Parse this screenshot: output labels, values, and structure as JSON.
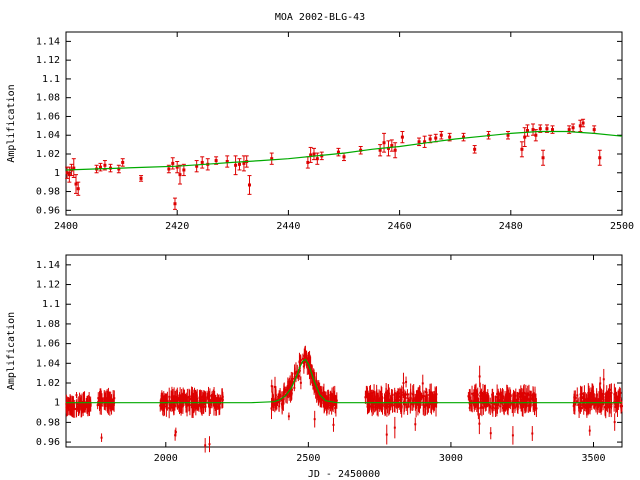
{
  "title": "MOA 2002-BLG-43",
  "colors": {
    "data": "#dd0000",
    "model": "#00aa00",
    "axis": "#000000"
  },
  "chart_data": [
    {
      "type": "scatter",
      "ylabel": "Amplification",
      "xlabel": "",
      "xlim": [
        2400,
        2500
      ],
      "ylim": [
        0.955,
        1.15
      ],
      "xticks": [
        2400,
        2420,
        2440,
        2460,
        2480,
        2500
      ],
      "yticks": [
        0.96,
        0.98,
        1,
        1.02,
        1.04,
        1.06,
        1.08,
        1.1,
        1.12,
        1.14
      ],
      "grid": false,
      "series": [
        {
          "role": "observations (error bars)",
          "x": [
            2400.2,
            2400.6,
            2401.0,
            2401.4,
            2401.8,
            2402.2,
            2405.5,
            2406.2,
            2407.0,
            2408.0,
            2409.5,
            2410.2,
            2413.5,
            2418.5,
            2419.2,
            2419.6,
            2420.0,
            2420.5,
            2421.2,
            2423.5,
            2424.5,
            2425.5,
            2427.0,
            2429.0,
            2430.5,
            2431.2,
            2432.0,
            2432.5,
            2433.0,
            2437.0,
            2443.5,
            2444.0,
            2444.6,
            2445.2,
            2446.0,
            2449.0,
            2450.0,
            2453.0,
            2456.5,
            2457.2,
            2458.0,
            2458.6,
            2459.2,
            2460.5,
            2463.5,
            2464.5,
            2465.5,
            2466.5,
            2467.5,
            2469.0,
            2471.5,
            2473.5,
            2476.0,
            2479.5,
            2482.0,
            2482.5,
            2483.0,
            2484.0,
            2484.5,
            2485.3,
            2485.8,
            2486.5,
            2487.5,
            2490.5,
            2491.2,
            2492.5,
            2493.0,
            2495.0,
            2496.0
          ],
          "y": [
            1.0,
            0.998,
            1.003,
            1.005,
            0.988,
            0.983,
            1.004,
            1.006,
            1.008,
            1.005,
            1.004,
            1.011,
            0.994,
            1.004,
            1.01,
            0.967,
            1.006,
            0.998,
            1.003,
            1.007,
            1.011,
            1.009,
            1.013,
            1.012,
            1.008,
            1.009,
            1.01,
            1.012,
            0.987,
            1.015,
            1.011,
            1.019,
            1.02,
            1.015,
            1.018,
            1.022,
            1.017,
            1.024,
            1.024,
            1.032,
            1.026,
            1.029,
            1.024,
            1.038,
            1.033,
            1.033,
            1.036,
            1.037,
            1.04,
            1.038,
            1.038,
            1.025,
            1.04,
            1.04,
            1.025,
            1.038,
            1.045,
            1.046,
            1.04,
            1.047,
            1.016,
            1.047,
            1.046,
            1.046,
            1.048,
            1.05,
            1.053,
            1.046,
            1.016
          ],
          "err": [
            0.006,
            0.008,
            0.006,
            0.01,
            0.01,
            0.007,
            0.004,
            0.004,
            0.005,
            0.004,
            0.004,
            0.004,
            0.003,
            0.004,
            0.006,
            0.006,
            0.006,
            0.01,
            0.006,
            0.006,
            0.006,
            0.006,
            0.004,
            0.006,
            0.01,
            0.006,
            0.008,
            0.006,
            0.01,
            0.006,
            0.006,
            0.008,
            0.006,
            0.006,
            0.004,
            0.004,
            0.004,
            0.004,
            0.006,
            0.01,
            0.008,
            0.006,
            0.008,
            0.006,
            0.004,
            0.006,
            0.004,
            0.004,
            0.004,
            0.004,
            0.004,
            0.004,
            0.004,
            0.004,
            0.008,
            0.01,
            0.006,
            0.006,
            0.006,
            0.004,
            0.008,
            0.004,
            0.004,
            0.004,
            0.004,
            0.006,
            0.004,
            0.004,
            0.008
          ]
        },
        {
          "role": "model",
          "x": [
            2400,
            2405,
            2410,
            2415,
            2420,
            2425,
            2430,
            2435,
            2440,
            2445,
            2450,
            2455,
            2460,
            2465,
            2470,
            2475,
            2480,
            2485,
            2490,
            2495,
            2500
          ],
          "y": [
            1.003,
            1.004,
            1.005,
            1.006,
            1.007,
            1.009,
            1.011,
            1.013,
            1.015,
            1.018,
            1.021,
            1.025,
            1.028,
            1.032,
            1.036,
            1.039,
            1.042,
            1.044,
            1.044,
            1.042,
            1.039
          ]
        }
      ]
    },
    {
      "type": "scatter",
      "ylabel": "Amplification",
      "xlabel": "JD - 2450000",
      "xlim": [
        1650,
        3600
      ],
      "ylim": [
        0.955,
        1.15
      ],
      "xticks": [
        2000,
        2500,
        3000,
        3500
      ],
      "yticks": [
        0.96,
        0.98,
        1,
        1.02,
        1.04,
        1.06,
        1.08,
        1.1,
        1.12,
        1.14
      ],
      "grid": false,
      "seasons": [
        {
          "range": [
            1650,
            1740
          ],
          "center": 0.997,
          "spread": 0.004
        },
        {
          "range": [
            1760,
            1820
          ],
          "center": 1.001,
          "spread": 0.004
        },
        {
          "range": [
            1980,
            2200
          ],
          "center": 1.001,
          "spread": 0.006
        },
        {
          "range": [
            2370,
            2600
          ],
          "center": 1.0,
          "spread": 0.007
        },
        {
          "range": [
            2700,
            2950
          ],
          "center": 1.003,
          "spread": 0.008
        },
        {
          "range": [
            3060,
            3300
          ],
          "center": 1.002,
          "spread": 0.008
        },
        {
          "range": [
            3430,
            3600
          ],
          "center": 1.002,
          "spread": 0.008
        }
      ],
      "series": [
        {
          "role": "model",
          "x": [
            1650,
            2300,
            2380,
            2400,
            2420,
            2440,
            2460,
            2470,
            2480,
            2490,
            2500,
            2510,
            2520,
            2540,
            2560,
            2600,
            3600
          ],
          "y": [
            1.0,
            1.0,
            1.001,
            1.003,
            1.007,
            1.015,
            1.028,
            1.036,
            1.042,
            1.044,
            1.039,
            1.031,
            1.022,
            1.008,
            1.002,
            1.0,
            1.0
          ]
        }
      ]
    }
  ]
}
